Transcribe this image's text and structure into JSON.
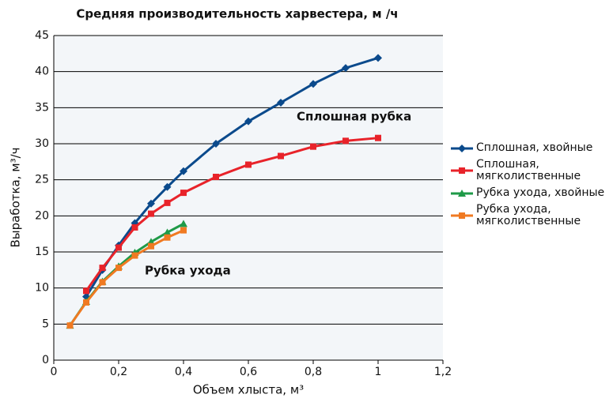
{
  "chart_data": {
    "type": "line",
    "title": "Средняя производительность харвестера, м /ч",
    "x_label": "Объем хлыста, м³",
    "y_label": "Выработка, м³/ч",
    "xlim": [
      0,
      1.2
    ],
    "xticks": [
      0,
      {
        "value": 0.2,
        "label": "0,2"
      },
      {
        "value": 0.4,
        "label": "0,4"
      },
      {
        "value": 0.6,
        "label": "0,6"
      },
      {
        "value": 0.8,
        "label": "0,8"
      },
      1,
      {
        "value": 1.2,
        "label": "1,2"
      }
    ],
    "ylim": [
      0,
      45
    ],
    "yticks": [
      0,
      5,
      10,
      15,
      20,
      25,
      30,
      35,
      40,
      45
    ],
    "grid": true,
    "legend": "right",
    "annotations": [
      "Сплошная рубка",
      "Рубка ухода"
    ],
    "series": [
      {
        "name": "Сплошная, хвойные",
        "color": "#0b4a8c",
        "marker": "diamond",
        "x": [
          0.1,
          0.15,
          0.2,
          0.25,
          0.3,
          0.35,
          0.4,
          0.5,
          0.6,
          0.7,
          0.8,
          0.9,
          1.0
        ],
        "values": [
          8.8,
          12.5,
          15.9,
          19.0,
          21.7,
          24.0,
          26.2,
          30.0,
          33.1,
          35.7,
          38.3,
          40.5,
          41.9
        ]
      },
      {
        "name": "Сплошная, мягколиственные",
        "color": "#e8232a",
        "marker": "square",
        "x": [
          0.1,
          0.15,
          0.2,
          0.25,
          0.3,
          0.35,
          0.4,
          0.5,
          0.6,
          0.7,
          0.8,
          0.9,
          1.0
        ],
        "values": [
          9.6,
          12.8,
          15.6,
          18.4,
          20.3,
          21.8,
          23.2,
          25.4,
          27.1,
          28.3,
          29.6,
          30.4,
          30.8
        ]
      },
      {
        "name": "Рубка ухода, хвойные",
        "color": "#1f9a48",
        "marker": "triangle",
        "x": [
          0.05,
          0.1,
          0.15,
          0.2,
          0.25,
          0.3,
          0.35,
          0.4
        ],
        "values": [
          4.8,
          8.1,
          10.9,
          13.0,
          14.9,
          16.4,
          17.7,
          18.9
        ]
      },
      {
        "name": "Рубка ухода, мягколиственные",
        "color": "#f07a22",
        "marker": "square",
        "x": [
          0.05,
          0.1,
          0.15,
          0.2,
          0.25,
          0.3,
          0.35,
          0.4
        ],
        "values": [
          4.8,
          8.0,
          10.8,
          12.8,
          14.5,
          15.8,
          17.0,
          18.0
        ]
      }
    ]
  }
}
